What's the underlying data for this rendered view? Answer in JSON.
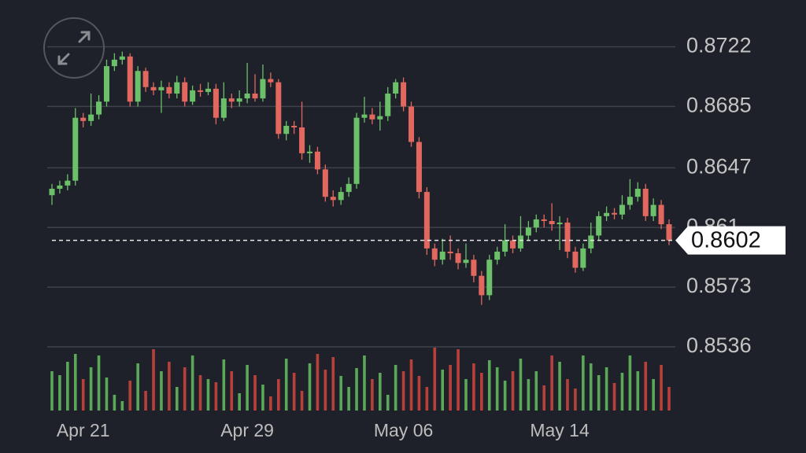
{
  "chart_data": {
    "type": "candlestick",
    "categories": [
      null,
      null,
      null,
      null,
      "Apr 21",
      null,
      null,
      null,
      null,
      null,
      null,
      null,
      null,
      null,
      null,
      null,
      null,
      null,
      null,
      null,
      null,
      null,
      null,
      null,
      null,
      "Apr 29",
      null,
      null,
      null,
      null,
      null,
      null,
      null,
      null,
      null,
      null,
      null,
      null,
      null,
      null,
      null,
      null,
      null,
      null,
      null,
      "May 06",
      null,
      null,
      null,
      null,
      null,
      null,
      null,
      null,
      null,
      null,
      null,
      null,
      null,
      null,
      null,
      null,
      null,
      null,
      null,
      "May 14",
      null,
      null,
      null,
      null,
      null,
      null,
      null,
      null,
      null,
      null,
      null,
      null,
      null,
      null
    ],
    "open": [
      0.863,
      0.8634,
      0.8636,
      0.8639,
      0.8678,
      0.8676,
      0.868,
      0.8688,
      0.871,
      0.8714,
      0.8716,
      0.8688,
      0.8707,
      0.8697,
      0.8695,
      0.8697,
      0.8693,
      0.87,
      0.8688,
      0.8695,
      0.8694,
      0.8696,
      0.8678,
      0.869,
      0.8688,
      0.869,
      0.8693,
      0.869,
      0.8702,
      0.87,
      0.8668,
      0.8673,
      0.8672,
      0.8656,
      0.8657,
      0.8646,
      0.8629,
      0.8627,
      0.8632,
      0.8637,
      0.8678,
      0.868,
      0.8677,
      0.8679,
      0.8693,
      0.87,
      0.8685,
      0.8663,
      0.8632,
      0.8597,
      0.859,
      0.8595,
      0.8594,
      0.8588,
      0.859,
      0.858,
      0.8568,
      0.859,
      0.8595,
      0.8602,
      0.8597,
      0.8605,
      0.861,
      0.8615,
      0.8614,
      0.8612,
      0.8613,
      0.8595,
      0.8585,
      0.8597,
      0.8605,
      0.8617,
      0.8619,
      0.8618,
      0.8624,
      0.8629,
      0.8634,
      0.8617,
      0.8624,
      0.8612
    ],
    "high": [
      0.8637,
      0.8639,
      0.8643,
      0.8684,
      0.8681,
      0.8693,
      0.8692,
      0.8714,
      0.8718,
      0.8719,
      0.8718,
      0.871,
      0.8709,
      0.87,
      0.8701,
      0.87,
      0.8704,
      0.8703,
      0.8698,
      0.8699,
      0.87,
      0.8699,
      0.87,
      0.8693,
      0.8695,
      0.8712,
      0.8705,
      0.8711,
      0.8706,
      0.8702,
      0.8676,
      0.8676,
      0.8688,
      0.8661,
      0.866,
      0.8649,
      0.8633,
      0.8635,
      0.8641,
      0.8681,
      0.8691,
      0.8684,
      0.8688,
      0.8697,
      0.8702,
      0.8703,
      0.8688,
      0.8666,
      0.8635,
      0.86,
      0.8603,
      0.8605,
      0.8597,
      0.86,
      0.8593,
      0.8583,
      0.8593,
      0.8598,
      0.8612,
      0.8605,
      0.8617,
      0.8614,
      0.8618,
      0.8618,
      0.8625,
      0.8617,
      0.8616,
      0.8598,
      0.86,
      0.8613,
      0.862,
      0.8623,
      0.8622,
      0.863,
      0.864,
      0.8638,
      0.8637,
      0.8628,
      0.8627,
      0.8615
    ],
    "low": [
      0.8624,
      0.8631,
      0.8633,
      0.8636,
      0.8672,
      0.8673,
      0.8677,
      0.8685,
      0.8707,
      0.8711,
      0.8685,
      0.8685,
      0.8694,
      0.8692,
      0.8681,
      0.869,
      0.869,
      0.8685,
      0.8686,
      0.8691,
      0.8692,
      0.8674,
      0.8676,
      0.8684,
      0.8685,
      0.8687,
      0.8688,
      0.8688,
      0.8697,
      0.8665,
      0.8664,
      0.8668,
      0.8652,
      0.865,
      0.8643,
      0.8626,
      0.8623,
      0.8624,
      0.8629,
      0.8634,
      0.8675,
      0.8674,
      0.867,
      0.8676,
      0.869,
      0.8682,
      0.866,
      0.8628,
      0.8593,
      0.8586,
      0.8587,
      0.859,
      0.8584,
      0.8585,
      0.8576,
      0.8562,
      0.8565,
      0.8587,
      0.8592,
      0.8594,
      0.8595,
      0.8602,
      0.8607,
      0.861,
      0.8608,
      0.8596,
      0.8591,
      0.8582,
      0.8583,
      0.8594,
      0.8602,
      0.8614,
      0.8615,
      0.8615,
      0.8621,
      0.8626,
      0.8614,
      0.8614,
      0.8609,
      0.8599
    ],
    "close": [
      0.8634,
      0.8636,
      0.8639,
      0.8678,
      0.8676,
      0.868,
      0.8688,
      0.871,
      0.8714,
      0.8716,
      0.8688,
      0.8707,
      0.8697,
      0.8695,
      0.8697,
      0.8693,
      0.87,
      0.8688,
      0.8695,
      0.8694,
      0.8696,
      0.8678,
      0.869,
      0.8688,
      0.869,
      0.8693,
      0.869,
      0.8702,
      0.87,
      0.8668,
      0.8673,
      0.8672,
      0.8656,
      0.8657,
      0.8646,
      0.8629,
      0.8627,
      0.8632,
      0.8637,
      0.8678,
      0.868,
      0.8677,
      0.8679,
      0.8693,
      0.87,
      0.8685,
      0.8663,
      0.8632,
      0.8597,
      0.859,
      0.8595,
      0.8594,
      0.8588,
      0.859,
      0.858,
      0.8568,
      0.859,
      0.8595,
      0.8602,
      0.8597,
      0.8605,
      0.861,
      0.8615,
      0.8614,
      0.8612,
      0.8613,
      0.8595,
      0.8585,
      0.8597,
      0.8605,
      0.8617,
      0.8619,
      0.8618,
      0.8624,
      0.8629,
      0.8634,
      0.8617,
      0.8624,
      0.8612,
      0.8602
    ],
    "volume": [
      50,
      45,
      62,
      72,
      40,
      55,
      70,
      42,
      20,
      12,
      38,
      60,
      25,
      78,
      50,
      62,
      30,
      55,
      70,
      45,
      40,
      36,
      65,
      50,
      22,
      58,
      45,
      33,
      18,
      40,
      66,
      48,
      25,
      60,
      72,
      52,
      68,
      44,
      30,
      54,
      70,
      40,
      48,
      20,
      58,
      50,
      65,
      44,
      30,
      80,
      52,
      58,
      78,
      40,
      60,
      48,
      64,
      55,
      38,
      50,
      66,
      40,
      50,
      32,
      70,
      62,
      40,
      28,
      70,
      60,
      45,
      55,
      35,
      48,
      70,
      50,
      62,
      40,
      58,
      30
    ],
    "up_color": "#6cc06a",
    "down_color": "#e2675f",
    "volume_up_color": "#5aa858",
    "volume_down_color": "#b8403a",
    "ylim": [
      0.8536,
      0.8751
    ],
    "yticks": [
      0.8536,
      0.8573,
      0.861,
      0.8647,
      0.8685,
      0.8722
    ],
    "grid": true,
    "last_price": 0.8602
  }
}
